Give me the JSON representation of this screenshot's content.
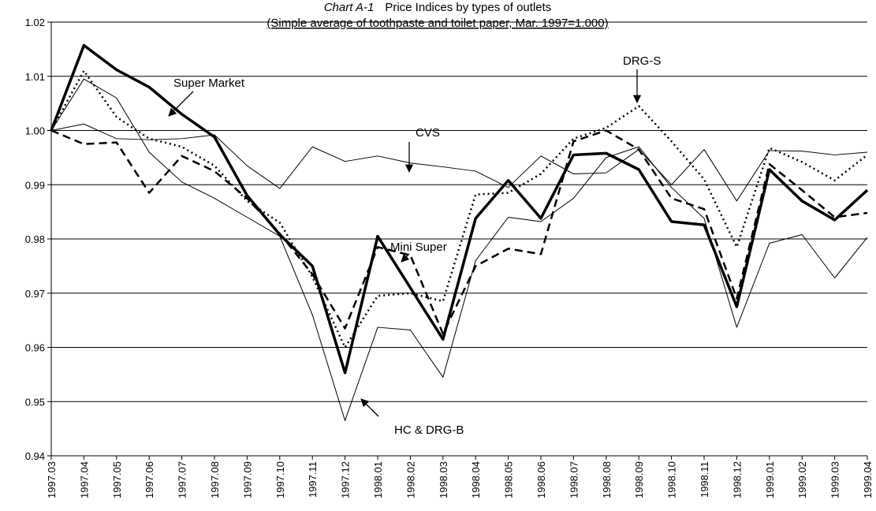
{
  "chart_data": {
    "type": "line",
    "chart_label": "Chart A-1",
    "title": "Price Indices by types of outlets",
    "subtitle": "(Simple average of toothpaste and toilet paper, Mar. 1997=1.000)",
    "categories": [
      "1997.03",
      "1997.04",
      "1997.05",
      "1997.06",
      "1997.07",
      "1997.08",
      "1997.09",
      "1997.10",
      "1997.11",
      "1997.12",
      "1998.01",
      "1998.02",
      "1998.03",
      "1998.04",
      "1998.05",
      "1998.06",
      "1998.07",
      "1998.08",
      "1998.09",
      "1998.10",
      "1998.11",
      "1998.12",
      "1999.01",
      "1999.02",
      "1999.03",
      "1999.04"
    ],
    "ylim": [
      0.94,
      1.02
    ],
    "yticks": [
      0.94,
      0.95,
      0.96,
      0.97,
      0.98,
      0.99,
      {
        "value": 1,
        "label": "1.00"
      },
      1.01,
      1.02
    ],
    "grid": true,
    "series": [
      {
        "name": "CVS",
        "color": "#000000",
        "line_style": "thin",
        "values": [
          1.0,
          1.0012,
          0.9985,
          0.9983,
          0.9985,
          0.9992,
          0.9935,
          0.9893,
          0.997,
          0.9943,
          0.9953,
          0.994,
          0.9933,
          0.9925,
          0.9895,
          0.9953,
          0.992,
          0.9922,
          0.9965,
          0.99,
          0.9965,
          0.987,
          0.9963,
          0.9962,
          0.9955,
          0.996
        ]
      },
      {
        "name": "HC & DRG-B",
        "color": "#000000",
        "line_style": "thin",
        "values": [
          1.0,
          1.0095,
          1.006,
          0.996,
          0.9905,
          0.9875,
          0.984,
          0.9805,
          0.966,
          0.9465,
          0.9637,
          0.9632,
          0.9545,
          0.976,
          0.984,
          0.9832,
          0.9875,
          0.995,
          0.997,
          0.9895,
          0.9838,
          0.9637,
          0.9792,
          0.9808,
          0.9728,
          0.9803
        ]
      },
      {
        "name": "DRG-S",
        "color": "#000000",
        "line_style": "dotted",
        "values": [
          1.0,
          1.011,
          1.0025,
          0.9985,
          0.997,
          0.9935,
          0.987,
          0.983,
          0.973,
          0.96,
          0.9695,
          0.97,
          0.9685,
          0.9882,
          0.9885,
          0.992,
          0.9985,
          1.0005,
          1.0045,
          0.998,
          0.991,
          0.9785,
          0.9968,
          0.9942,
          0.9908,
          0.9955
        ]
      },
      {
        "name": "Mini Super",
        "color": "#000000",
        "line_style": "dashed",
        "values": [
          1.0,
          0.9975,
          0.9978,
          0.9885,
          0.9953,
          0.9925,
          0.9875,
          0.981,
          0.9735,
          0.9635,
          0.9785,
          0.977,
          0.9625,
          0.975,
          0.9782,
          0.9772,
          0.998,
          1.0,
          0.9965,
          0.9875,
          0.9855,
          0.969,
          0.9938,
          0.989,
          0.984,
          0.9848
        ]
      },
      {
        "name": "Super Market",
        "color": "#000000",
        "line_style": "thick",
        "values": [
          1.0,
          1.0157,
          1.0112,
          1.008,
          1.003,
          0.9988,
          0.988,
          0.9808,
          0.975,
          0.9553,
          0.9805,
          0.971,
          0.9615,
          0.9838,
          0.9908,
          0.9838,
          0.9955,
          0.9958,
          0.9928,
          0.9832,
          0.9826,
          0.9675,
          0.9928,
          0.987,
          0.9835,
          0.989
        ]
      }
    ]
  }
}
